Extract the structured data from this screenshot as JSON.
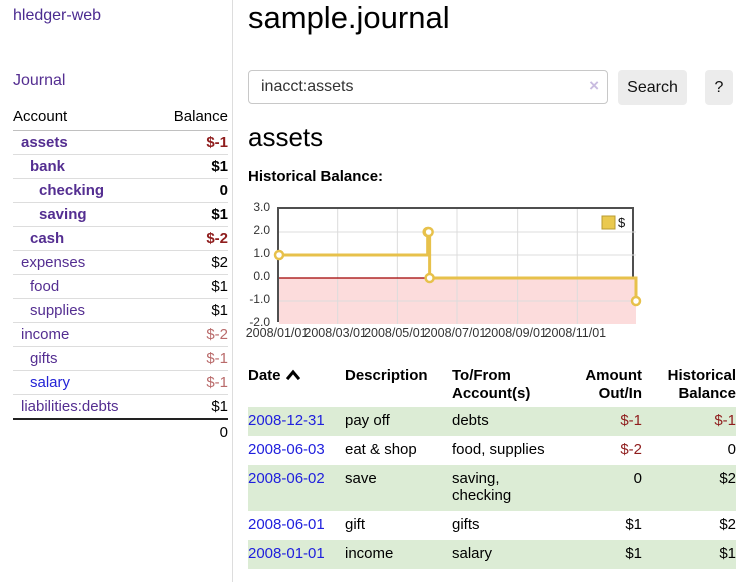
{
  "app": {
    "brand": "hledger-web",
    "nav_journal": "Journal"
  },
  "sidebar": {
    "accounts_header": {
      "account": "Account",
      "balance": "Balance"
    },
    "accounts": [
      {
        "name": "assets",
        "level": 1,
        "in_account": true,
        "balance": "$-1",
        "balance_tone": "negative-strong"
      },
      {
        "name": "bank",
        "level": 2,
        "in_account": true,
        "balance": "$1",
        "balance_tone": "normal"
      },
      {
        "name": "checking",
        "level": 3,
        "in_account": true,
        "balance": "0",
        "balance_tone": "normal"
      },
      {
        "name": "saving",
        "level": 3,
        "in_account": true,
        "balance": "$1",
        "balance_tone": "normal"
      },
      {
        "name": "cash",
        "level": 2,
        "in_account": true,
        "balance": "$-2",
        "balance_tone": "negative-strong"
      },
      {
        "name": "expenses",
        "level": 1,
        "in_account": false,
        "balance": "$2",
        "balance_tone": "normal"
      },
      {
        "name": "food",
        "level": 2,
        "in_account": false,
        "balance": "$1",
        "balance_tone": "normal"
      },
      {
        "name": "supplies",
        "level": 2,
        "in_account": false,
        "balance": "$1",
        "balance_tone": "normal"
      },
      {
        "name": "income",
        "level": 1,
        "in_account": false,
        "balance": "$-2",
        "balance_tone": "negative-soft"
      },
      {
        "name": "gifts",
        "level": 2,
        "in_account": false,
        "balance": "$-1",
        "balance_tone": "negative-soft"
      },
      {
        "name": "salary",
        "level": 2,
        "in_account": false,
        "balance": "$-1",
        "balance_tone": "negative-soft",
        "link_tone": "unvisited-blue"
      },
      {
        "name": "liabilities:debts",
        "level": 1,
        "in_account": false,
        "balance": "$1",
        "balance_tone": "normal"
      }
    ],
    "total": "0"
  },
  "main": {
    "title": "sample.journal",
    "search": {
      "value": "inacct:assets",
      "clear_icon": "×",
      "button": "Search",
      "help": "?"
    },
    "account_heading": "assets",
    "chart_label": "Historical Balance:"
  },
  "chart_data": {
    "type": "line",
    "title": "Historical Balance",
    "step": "after",
    "series": [
      {
        "name": "$",
        "color": "#e7c14b",
        "points": [
          [
            "2008-01-01",
            1.0
          ],
          [
            "2008-06-01",
            2.0
          ],
          [
            "2008-06-02",
            2.0
          ],
          [
            "2008-06-03",
            0.0
          ],
          [
            "2008-12-31",
            -1.0
          ]
        ]
      }
    ],
    "x_range": [
      "2008-01-01",
      "2008-12-31"
    ],
    "y_range": [
      -2.0,
      3.0
    ],
    "y_ticks": [
      3.0,
      2.0,
      1.0,
      0.0,
      -1.0,
      -2.0
    ],
    "y_tick_labels": [
      "3.0",
      "2.0",
      "1.0",
      "0.0",
      "-1.0",
      "-2.0"
    ],
    "x_ticks": [
      "2008-01-01",
      "2008-03-01",
      "2008-05-01",
      "2008-07-01",
      "2008-09-01",
      "2008-11-01"
    ],
    "x_tick_labels": [
      "2008/01/01",
      "2008/03/01",
      "2008/05/01",
      "2008/07/01",
      "2008/09/01",
      "2008/11/01"
    ],
    "grid": true,
    "legend": {
      "label": "$",
      "position": "top-right"
    },
    "negative_region_fill": "#fcdcdc",
    "zero_line_color": "#a00000"
  },
  "register": {
    "headers": {
      "date": "Date",
      "sort": "ascending",
      "description": "Description",
      "accounts": "To/From\nAccount(s)",
      "amount": "Amount\nOut/In",
      "balance": "Historical\nBalance"
    },
    "rows": [
      {
        "date": "2008-12-31",
        "description": "pay off",
        "accounts": "debts",
        "amount": "$-1",
        "amount_negative": true,
        "balance": "$-1",
        "balance_negative": true
      },
      {
        "date": "2008-06-03",
        "description": "eat & shop",
        "accounts": "food, supplies",
        "amount": "$-2",
        "amount_negative": true,
        "balance": "0",
        "balance_negative": false
      },
      {
        "date": "2008-06-02",
        "description": "save",
        "accounts": "saving,\nchecking",
        "amount": "0",
        "amount_negative": false,
        "balance": "$2",
        "balance_negative": false
      },
      {
        "date": "2008-06-01",
        "description": "gift",
        "accounts": "gifts",
        "amount": "$1",
        "amount_negative": false,
        "balance": "$2",
        "balance_negative": false
      },
      {
        "date": "2008-01-01",
        "description": "income",
        "accounts": "salary",
        "amount": "$1",
        "amount_negative": false,
        "balance": "$1",
        "balance_negative": false
      }
    ]
  },
  "colors": {
    "link_purple": "#542e91",
    "link_blue": "#2020dd",
    "negative_strong": "#8f1d1d",
    "negative_soft": "#b96a6a",
    "table_stripe_green": "#dcecd5",
    "chart_series_yellow": "#e7c14b",
    "chart_negative_area_pink": "#fcdcdc",
    "chart_zero_line_red": "#a00000",
    "button_gray": "#ececec"
  }
}
